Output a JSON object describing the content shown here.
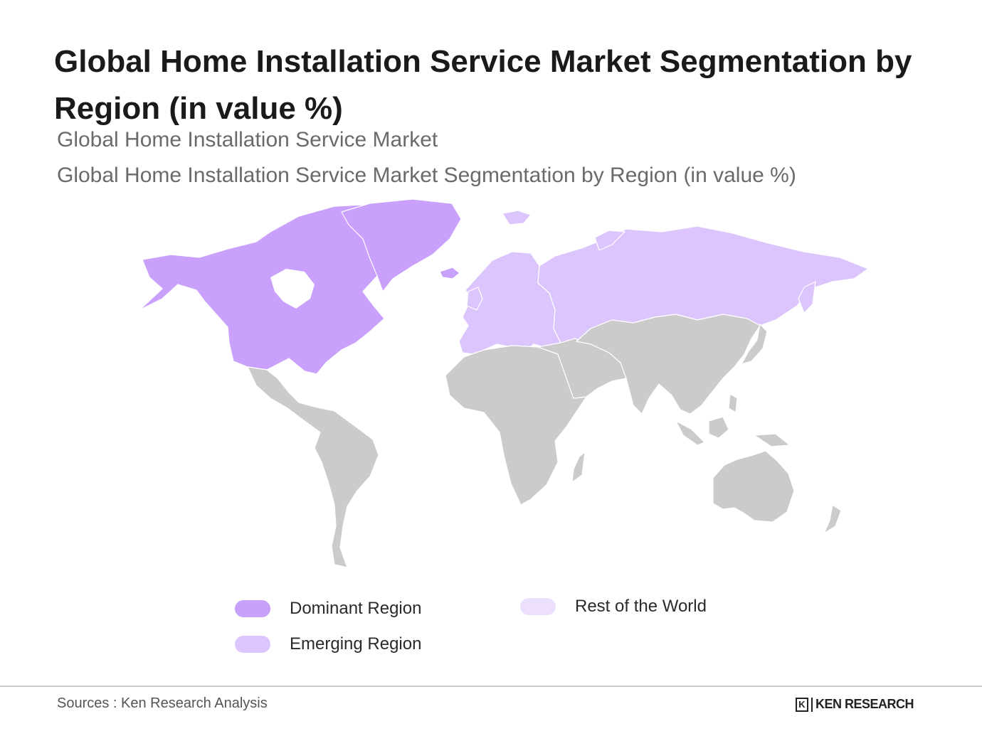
{
  "title": "Global Home Installation Service Market Segmentation by Region (in value %)",
  "subtitle_1": "Global Home Installation Service Market",
  "subtitle_2": "Global Home Installation Service Market Segmentation by Region (in value %)",
  "colors": {
    "dominant": "#c9a0fb",
    "emerging": "#dcc5fd",
    "rest": "#ece0fe",
    "other_land": "#cbcbcb",
    "border": "#ffffff"
  },
  "regions": [
    {
      "name": "North America",
      "category": "dominant"
    },
    {
      "name": "Greenland",
      "category": "dominant"
    },
    {
      "name": "Europe",
      "category": "emerging"
    },
    {
      "name": "Russia",
      "category": "emerging"
    },
    {
      "name": "Latin America",
      "category": "other"
    },
    {
      "name": "Africa",
      "category": "other"
    },
    {
      "name": "Middle East",
      "category": "other"
    },
    {
      "name": "Asia",
      "category": "other"
    },
    {
      "name": "Oceania",
      "category": "other"
    }
  ],
  "legend": [
    {
      "label": "Dominant Region",
      "color": "#c9a0fb"
    },
    {
      "label": "Emerging Region",
      "color": "#dcc5fd"
    },
    {
      "label": "Rest of the World",
      "color": "#ece0fe"
    }
  ],
  "footer": {
    "source": "Sources : Ken Research Analysis",
    "brand_mark": "K",
    "brand_text": "KEN RESEARCH"
  }
}
